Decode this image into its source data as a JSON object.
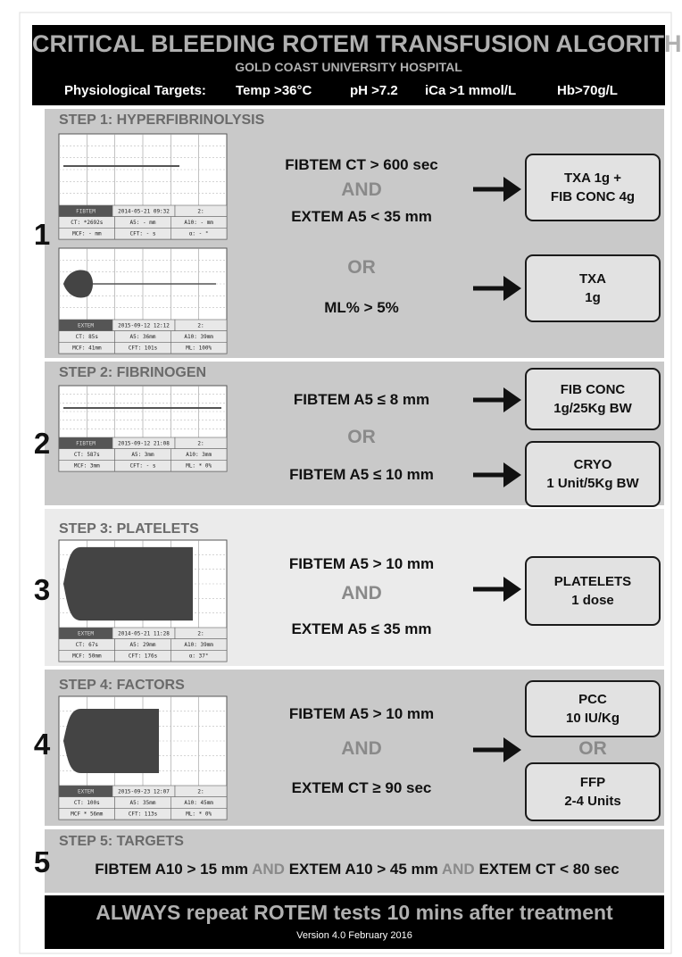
{
  "header": {
    "title": "CRITICAL BLEEDING ROTEM TRANSFUSION ALGORITHM",
    "subtitle": "GOLD COAST UNIVERSITY HOSPITAL",
    "targets_label": "Physiological Targets:",
    "targets": [
      "Temp >36°C",
      "pH >7.2",
      "iCa >1 mmol/L",
      "Hb>70g/L"
    ]
  },
  "steps": [
    {
      "title": "STEP 1: HYPERFIBRINOLYSIS",
      "number": "1",
      "conditions": [
        "FIBTEM CT > 600 sec",
        "AND",
        "EXTEM A5 < 35 mm",
        "OR",
        "ML% > 5%"
      ],
      "actions": [
        [
          "TXA 1g +",
          "FIB CONC 4g"
        ],
        [
          "TXA",
          "1g"
        ]
      ],
      "graphs": [
        {
          "label": "FIBTEM",
          "date": "2014-05-21 09:32",
          "extra": "2:",
          "cells": [
            "CT: *2692s",
            "A5: - mm",
            "A10: - mm",
            "MCF: - mm",
            "CFT: - s",
            "α: - °"
          ]
        },
        {
          "label": "EXTEM",
          "date": "2015-09-12 12:12",
          "extra": "2:",
          "cells": [
            "CT: 85s",
            "A5: 36mm",
            "A10: 39mm",
            "MCF: 41mm",
            "CFT: 101s",
            "ML: 100%"
          ]
        }
      ]
    },
    {
      "title": "STEP 2: FIBRINOGEN",
      "number": "2",
      "conditions": [
        "FIBTEM A5 ≤  8 mm",
        "OR",
        "FIBTEM A5 ≤  10 mm"
      ],
      "actions": [
        [
          "FIB CONC",
          "1g/25Kg BW"
        ],
        [
          "CRYO",
          "1 Unit/5Kg BW"
        ]
      ],
      "graphs": [
        {
          "label": "FIBTEM",
          "date": "2015-09-12 21:08",
          "extra": "2:",
          "cells": [
            "CT: 587s",
            "A5: 3mm",
            "A10: 3mm",
            "MCF: 3mm",
            "CFT: - s",
            "ML: * 0%"
          ]
        }
      ]
    },
    {
      "title": "STEP 3: PLATELETS",
      "number": "3",
      "conditions": [
        "FIBTEM A5 >  10 mm",
        "AND",
        "EXTEM A5 ≤  35 mm"
      ],
      "actions": [
        [
          "PLATELETS",
          "1 dose"
        ]
      ],
      "graphs": [
        {
          "label": "EXTEM",
          "date": "2014-05-21 11:28",
          "extra": "2:",
          "cells": [
            "CT: 67s",
            "A5: 29mm",
            "A10: 39mm",
            "MCF: 50mm",
            "CFT: 176s",
            "α: 37°"
          ]
        }
      ]
    },
    {
      "title": "STEP 4: FACTORS",
      "number": "4",
      "conditions": [
        "FIBTEM A5 >  10 mm",
        "AND",
        "EXTEM CT ≥ 90 sec"
      ],
      "actions": [
        [
          "PCC",
          "10 IU/Kg"
        ],
        [
          "FFP",
          "2-4 Units"
        ]
      ],
      "action_connector": "OR",
      "graphs": [
        {
          "label": "EXTEM",
          "date": "2015-09-23 12:07",
          "extra": "2:",
          "cells": [
            "CT: 100s",
            "A5: 35mm",
            "A10: 45mm",
            "MCF * 56mm",
            "CFT: 113s",
            "ML: * 0%"
          ]
        }
      ]
    },
    {
      "title": "STEP 5: TARGETS",
      "number": "5",
      "conditions": [
        "FIBTEM A10 > 15 mm",
        "AND",
        "EXTEM A10 > 45 mm",
        "AND",
        "EXTEM CT < 80 sec"
      ]
    }
  ],
  "footer": {
    "note": "ALWAYS repeat ROTEM tests 10 mins after treatment",
    "version": "Version 4.0 February 2016"
  }
}
